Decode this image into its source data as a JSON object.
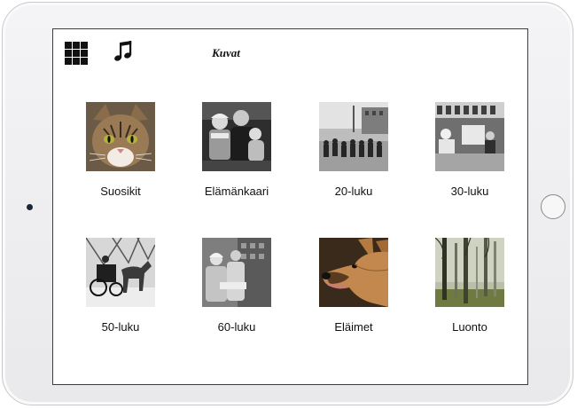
{
  "header": {
    "title": "Kuvat"
  },
  "toolbar": {
    "menu_icon": "grid-icon",
    "music_icon": "music-note-icon"
  },
  "categories": [
    {
      "label": "Suosikit",
      "image": "cat-face"
    },
    {
      "label": "Elämänkaari",
      "image": "family-photo"
    },
    {
      "label": "20-luku",
      "image": "crowd-street"
    },
    {
      "label": "30-luku",
      "image": "shop-interior"
    },
    {
      "label": "50-luku",
      "image": "horse-carriage"
    },
    {
      "label": "60-luku",
      "image": "women-market"
    },
    {
      "label": "Eläimet",
      "image": "dog-face"
    },
    {
      "label": "Luonto",
      "image": "misty-forest"
    }
  ]
}
